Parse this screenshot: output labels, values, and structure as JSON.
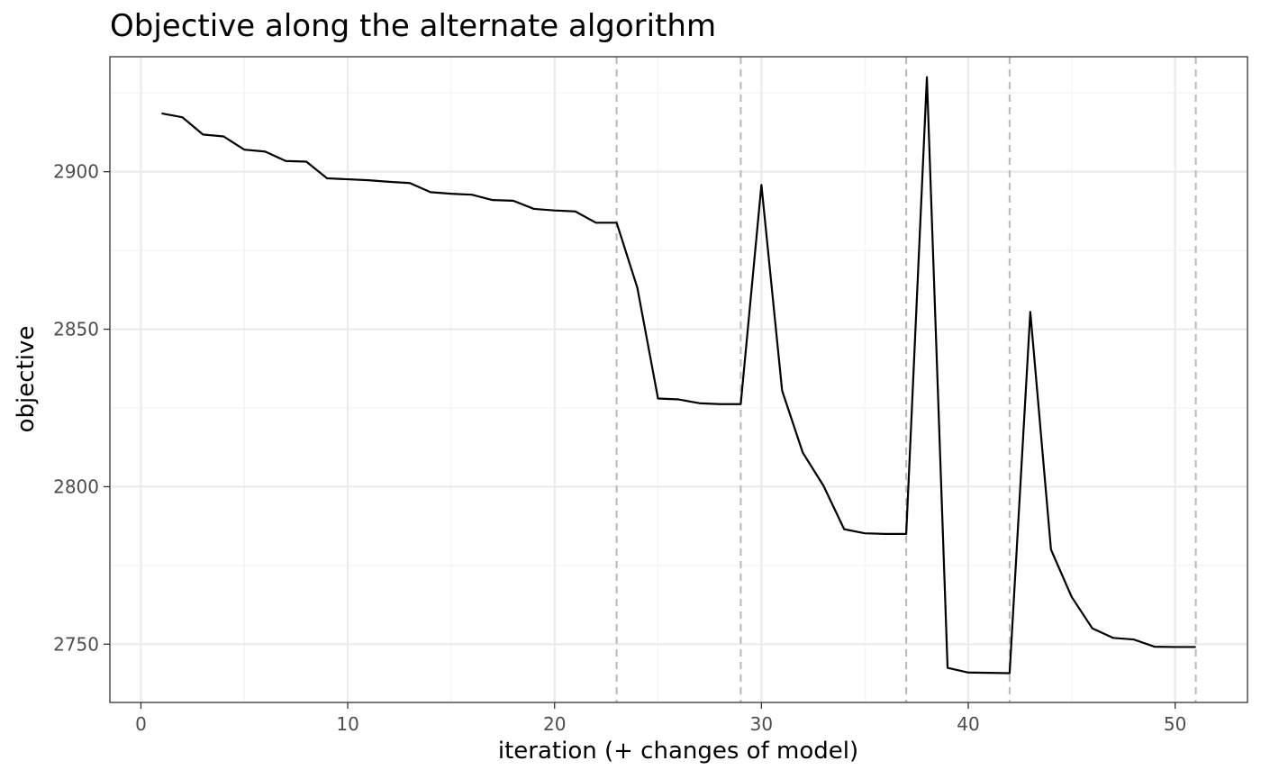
{
  "chart_data": {
    "type": "line",
    "title": "Objective along the alternate algorithm",
    "xlabel": "iteration (+ changes of model)",
    "ylabel": "objective",
    "xlim": [
      -1.5,
      53.5
    ],
    "ylim": [
      2731.5,
      2936.5
    ],
    "x_ticks": [
      0,
      10,
      20,
      30,
      40,
      50
    ],
    "x_minor_ticks": [
      5,
      15,
      25,
      35,
      45
    ],
    "y_ticks": [
      2750,
      2800,
      2850,
      2900
    ],
    "y_minor_ticks": [
      2775,
      2825,
      2875,
      2925
    ],
    "grid": true,
    "line_color": "#000000",
    "vline_color": "#bdbdbd",
    "model_change_iterations": [
      23,
      29,
      37,
      42,
      51
    ],
    "series": [
      {
        "x": [
          1,
          2,
          3,
          4,
          5,
          6,
          7,
          8,
          9,
          10,
          11,
          12,
          13,
          14,
          15,
          16,
          17,
          18,
          19,
          20,
          21,
          22,
          23,
          24,
          25,
          26,
          27,
          28,
          29,
          30,
          31,
          32,
          33,
          34,
          35,
          36,
          37,
          38,
          39,
          40,
          41,
          42,
          43,
          44,
          45,
          46,
          47,
          48,
          49,
          50,
          51
        ],
        "values": [
          2918.5,
          2917.3,
          2911.8,
          2911.2,
          2907.0,
          2906.4,
          2903.4,
          2903.2,
          2897.9,
          2897.6,
          2897.3,
          2896.8,
          2896.4,
          2893.5,
          2893.0,
          2892.7,
          2891.0,
          2890.8,
          2888.2,
          2887.7,
          2887.4,
          2883.8,
          2883.8,
          2863.2,
          2828.0,
          2827.7,
          2826.5,
          2826.2,
          2826.2,
          2895.8,
          2830.5,
          2810.8,
          2800.3,
          2786.5,
          2785.2,
          2785.0,
          2785.0,
          2930.0,
          2742.5,
          2741.0,
          2740.9,
          2740.8,
          2855.5,
          2780.0,
          2765.0,
          2755.0,
          2752.0,
          2751.5,
          2749.2,
          2749.1,
          2749.1
        ]
      }
    ]
  }
}
